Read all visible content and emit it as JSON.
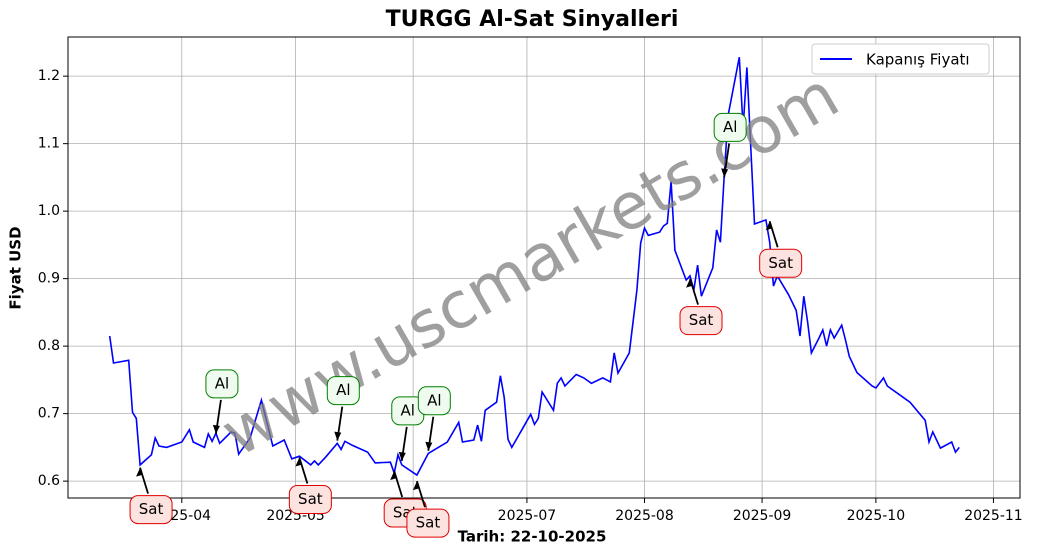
{
  "chart_data": {
    "type": "line",
    "title": "TURGG Al-Sat Sinyalleri",
    "x_label": "Tarih: 22-10-2025",
    "y_label": "Fiyat USD",
    "watermark": "www.uscmarkets.com",
    "grid": true,
    "legend": "upper right",
    "x": [
      "2025-03-13",
      "2025-03-14",
      "2025-03-18",
      "2025-03-19",
      "2025-03-20",
      "2025-03-21",
      "2025-03-24",
      "2025-03-25",
      "2025-03-26",
      "2025-03-28",
      "2025-04-01",
      "2025-04-03",
      "2025-04-04",
      "2025-04-07",
      "2025-04-08",
      "2025-04-09",
      "2025-04-10",
      "2025-04-11",
      "2025-04-14",
      "2025-04-15",
      "2025-04-16",
      "2025-04-19",
      "2025-04-22",
      "2025-04-25",
      "2025-04-28",
      "2025-04-30",
      "2025-05-02",
      "2025-05-05",
      "2025-05-06",
      "2025-05-07",
      "2025-05-09",
      "2025-05-12",
      "2025-05-13",
      "2025-05-14",
      "2025-05-16",
      "2025-05-20",
      "2025-05-22",
      "2025-05-26",
      "2025-05-27",
      "2025-05-28",
      "2025-05-29",
      "2025-06-02",
      "2025-06-05",
      "2025-06-10",
      "2025-06-13",
      "2025-06-14",
      "2025-06-17",
      "2025-06-18",
      "2025-06-19",
      "2025-06-20",
      "2025-06-23",
      "2025-06-24",
      "2025-06-25",
      "2025-06-26",
      "2025-06-27",
      "2025-07-02",
      "2025-07-03",
      "2025-07-04",
      "2025-07-05",
      "2025-07-08",
      "2025-07-09",
      "2025-07-10",
      "2025-07-11",
      "2025-07-14",
      "2025-07-16",
      "2025-07-18",
      "2025-07-21",
      "2025-07-23",
      "2025-07-24",
      "2025-07-25",
      "2025-07-28",
      "2025-07-30",
      "2025-07-31",
      "2025-08-01",
      "2025-08-02",
      "2025-08-05",
      "2025-08-06",
      "2025-08-07",
      "2025-08-08",
      "2025-08-09",
      "2025-08-12",
      "2025-08-13",
      "2025-08-14",
      "2025-08-15",
      "2025-08-16",
      "2025-08-19",
      "2025-08-20",
      "2025-08-21",
      "2025-08-22",
      "2025-08-23",
      "2025-08-26",
      "2025-08-27",
      "2025-08-28",
      "2025-08-30",
      "2025-09-02",
      "2025-09-03",
      "2025-09-04",
      "2025-09-05",
      "2025-09-08",
      "2025-09-10",
      "2025-09-11",
      "2025-09-12",
      "2025-09-13",
      "2025-09-14",
      "2025-09-16",
      "2025-09-17",
      "2025-09-18",
      "2025-09-19",
      "2025-09-20",
      "2025-09-22",
      "2025-09-23",
      "2025-09-24",
      "2025-09-26",
      "2025-09-30",
      "2025-10-01",
      "2025-10-03",
      "2025-10-04",
      "2025-10-10",
      "2025-10-14",
      "2025-10-15",
      "2025-10-16",
      "2025-10-18",
      "2025-10-21",
      "2025-10-22",
      "2025-10-23"
    ],
    "series": [
      {
        "name": "Kapanış Fiyatı",
        "color": "#0000ff",
        "values": [
          0.815,
          0.775,
          0.779,
          0.702,
          0.693,
          0.624,
          0.639,
          0.664,
          0.652,
          0.65,
          0.658,
          0.676,
          0.658,
          0.65,
          0.67,
          0.659,
          0.671,
          0.656,
          0.673,
          0.671,
          0.64,
          0.664,
          0.72,
          0.652,
          0.661,
          0.633,
          0.637,
          0.624,
          0.63,
          0.624,
          0.636,
          0.656,
          0.647,
          0.659,
          0.653,
          0.643,
          0.627,
          0.628,
          0.612,
          0.639,
          0.624,
          0.609,
          0.641,
          0.658,
          0.687,
          0.658,
          0.661,
          0.683,
          0.659,
          0.705,
          0.717,
          0.756,
          0.724,
          0.662,
          0.65,
          0.699,
          0.684,
          0.693,
          0.732,
          0.705,
          0.745,
          0.753,
          0.741,
          0.758,
          0.753,
          0.745,
          0.753,
          0.747,
          0.79,
          0.76,
          0.79,
          0.883,
          0.953,
          0.975,
          0.964,
          0.969,
          0.978,
          0.982,
          1.044,
          0.942,
          0.898,
          0.904,
          0.883,
          0.92,
          0.874,
          0.916,
          0.972,
          0.954,
          1.052,
          1.141,
          1.228,
          1.123,
          1.213,
          0.981,
          0.987,
          0.954,
          0.889,
          0.904,
          0.876,
          0.853,
          0.815,
          0.874,
          0.836,
          0.79,
          0.812,
          0.824,
          0.8,
          0.824,
          0.812,
          0.831,
          0.809,
          0.785,
          0.761,
          0.741,
          0.738,
          0.753,
          0.741,
          0.717,
          0.69,
          0.658,
          0.673,
          0.649,
          0.658,
          0.643,
          0.65
        ]
      }
    ],
    "annotations": [
      {
        "text": "Sat",
        "x": "2025-03-21",
        "y": 0.62
      },
      {
        "text": "Al",
        "x": "2025-04-10",
        "y": 0.67
      },
      {
        "text": "Sat",
        "x": "2025-05-02",
        "y": 0.635
      },
      {
        "text": "Al",
        "x": "2025-05-12",
        "y": 0.66
      },
      {
        "text": "Sat",
        "x": "2025-05-27",
        "y": 0.615
      },
      {
        "text": "Al",
        "x": "2025-05-29",
        "y": 0.63
      },
      {
        "text": "Sat",
        "x": "2025-06-02",
        "y": 0.6
      },
      {
        "text": "Al",
        "x": "2025-06-05",
        "y": 0.645
      },
      {
        "text": "Sat",
        "x": "2025-08-13",
        "y": 0.9
      },
      {
        "text": "Al",
        "x": "2025-08-22",
        "y": 1.05
      },
      {
        "text": "Sat",
        "x": "2025-09-03",
        "y": 0.985
      }
    ],
    "xlim": [
      "2025-03-02",
      "2025-11-08"
    ],
    "xticks": [
      "2025-04",
      "2025-05",
      "2025-06",
      "2025-07",
      "2025-08",
      "2025-09",
      "2025-10",
      "2025-11"
    ],
    "ylim": [
      0.575,
      1.258
    ],
    "yticks": [
      0.6,
      0.7,
      0.8,
      0.9,
      {
        "value": 1,
        "label": "1.0"
      },
      1.1,
      1.2
    ]
  }
}
